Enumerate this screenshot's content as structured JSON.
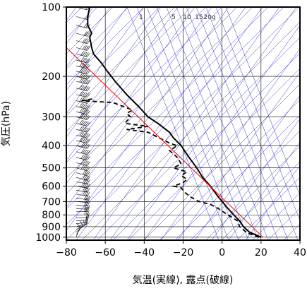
{
  "chart_data": {
    "type": "line",
    "xlabel": "気温(実線), 露点(破線)",
    "ylabel": "気圧(hPa)",
    "xlim": [
      -80,
      40
    ],
    "ylim": [
      1030,
      100
    ],
    "y_scale": "log",
    "x_ticks": [
      -80,
      -60,
      -40,
      -20,
      0,
      20,
      40
    ],
    "x_tick_labels": [
      "−80",
      "−60",
      "−40",
      "−20",
      "0",
      "20",
      "40"
    ],
    "y_ticks": [
      100,
      200,
      300,
      400,
      500,
      600,
      700,
      800,
      900,
      1000
    ],
    "y_tick_labels": [
      "100",
      "200",
      "300",
      "400",
      "500",
      "600",
      "700",
      "800",
      "900",
      "1000"
    ],
    "mixing_ratio_labels": [
      "1",
      "5",
      "10",
      "15",
      "20g"
    ],
    "colors": {
      "temperature": "#000000",
      "dewpoint": "#000000",
      "reference": "#ff0000",
      "background_lines": "#3333cc",
      "grid": "#000000"
    },
    "series": [
      {
        "name": "気温",
        "style": "solid",
        "points": [
          [
            20,
            1000
          ],
          [
            14,
            950
          ],
          [
            11,
            900
          ],
          [
            9,
            850
          ],
          [
            6,
            800
          ],
          [
            3,
            750
          ],
          [
            0,
            700
          ],
          [
            -3,
            650
          ],
          [
            -6,
            600
          ],
          [
            -10,
            550
          ],
          [
            -13,
            500
          ],
          [
            -17,
            450
          ],
          [
            -21,
            400
          ],
          [
            -25,
            370
          ],
          [
            -27,
            350
          ],
          [
            -33,
            320
          ],
          [
            -38,
            300
          ],
          [
            -43,
            270
          ],
          [
            -49,
            240
          ],
          [
            -55,
            210
          ],
          [
            -59,
            190
          ],
          [
            -62,
            175
          ],
          [
            -66,
            160
          ],
          [
            -67,
            150
          ],
          [
            -68,
            135
          ],
          [
            -67,
            130
          ],
          [
            -69,
            120
          ],
          [
            -69,
            110
          ],
          [
            -68,
            100
          ]
        ]
      },
      {
        "name": "露点",
        "style": "dashed",
        "points": [
          [
            19,
            1000
          ],
          [
            13,
            960
          ],
          [
            9,
            900
          ],
          [
            8,
            850
          ],
          [
            3,
            800
          ],
          [
            -2,
            750
          ],
          [
            -6,
            720
          ],
          [
            -12,
            700
          ],
          [
            -16,
            670
          ],
          [
            -19,
            640
          ],
          [
            -21,
            610
          ],
          [
            -25,
            600
          ],
          [
            -20,
            580
          ],
          [
            -18,
            560
          ],
          [
            -21,
            540
          ],
          [
            -18,
            520
          ],
          [
            -25,
            500
          ],
          [
            -21,
            480
          ],
          [
            -23,
            450
          ],
          [
            -27,
            420
          ],
          [
            -23,
            400
          ],
          [
            -27,
            390
          ],
          [
            -38,
            350
          ],
          [
            -49,
            340
          ],
          [
            -38,
            330
          ],
          [
            -50,
            320
          ],
          [
            -47,
            300
          ],
          [
            -49,
            290
          ],
          [
            -46,
            280
          ],
          [
            -51,
            270
          ],
          [
            -56,
            260
          ],
          [
            -72,
            255
          ],
          [
            -66,
            250
          ]
        ]
      },
      {
        "name": "",
        "style": "red",
        "points": [
          [
            21,
            1000
          ],
          [
            -80,
            150
          ]
        ]
      }
    ],
    "wind_barbs": [
      [
        1000,
        200,
        10
      ],
      [
        975,
        215,
        10
      ],
      [
        950,
        230,
        15
      ],
      [
        925,
        245,
        15
      ],
      [
        900,
        255,
        20
      ],
      [
        875,
        260,
        20
      ],
      [
        850,
        265,
        25
      ],
      [
        825,
        270,
        25
      ],
      [
        800,
        270,
        30
      ],
      [
        775,
        270,
        30
      ],
      [
        750,
        275,
        30
      ],
      [
        725,
        275,
        35
      ],
      [
        700,
        275,
        35
      ],
      [
        675,
        280,
        35
      ],
      [
        650,
        280,
        40
      ],
      [
        625,
        280,
        40
      ],
      [
        600,
        280,
        40
      ],
      [
        575,
        280,
        45
      ],
      [
        550,
        285,
        45
      ],
      [
        525,
        285,
        45
      ],
      [
        500,
        285,
        50
      ],
      [
        475,
        285,
        50
      ],
      [
        450,
        285,
        50
      ],
      [
        425,
        285,
        55
      ],
      [
        400,
        285,
        55
      ],
      [
        380,
        285,
        60
      ],
      [
        360,
        285,
        60
      ],
      [
        340,
        285,
        65
      ],
      [
        320,
        285,
        65
      ],
      [
        300,
        285,
        70
      ],
      [
        285,
        285,
        70
      ],
      [
        270,
        285,
        75
      ],
      [
        255,
        285,
        75
      ],
      [
        240,
        285,
        80
      ],
      [
        225,
        285,
        80
      ],
      [
        210,
        285,
        75
      ],
      [
        200,
        285,
        70
      ],
      [
        190,
        285,
        65
      ],
      [
        180,
        285,
        60
      ],
      [
        170,
        285,
        55
      ],
      [
        160,
        285,
        50
      ],
      [
        150,
        285,
        45
      ],
      [
        140,
        285,
        40
      ],
      [
        130,
        285,
        35
      ],
      [
        120,
        285,
        30
      ],
      [
        110,
        285,
        25
      ],
      [
        100,
        285,
        20
      ]
    ]
  }
}
